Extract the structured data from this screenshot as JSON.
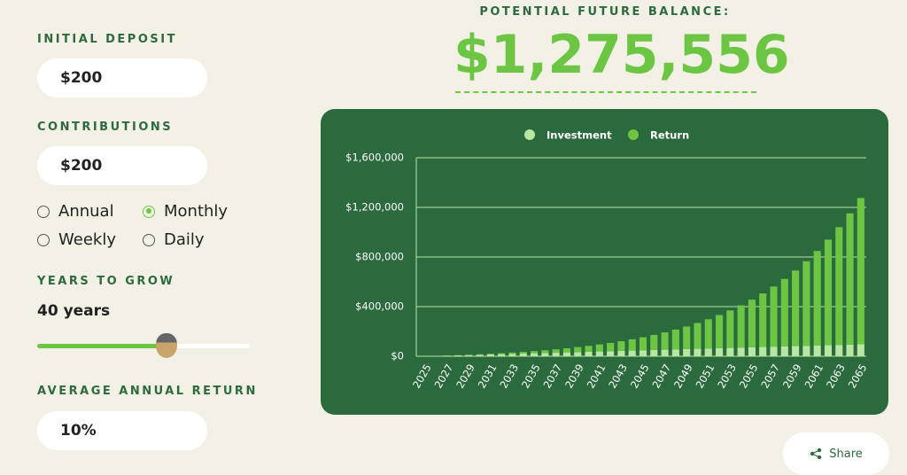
{
  "form": {
    "initial_deposit": {
      "label": "INITIAL DEPOSIT",
      "value": "$200"
    },
    "contributions": {
      "label": "CONTRIBUTIONS",
      "value": "$200"
    },
    "frequency": {
      "options": [
        "Annual",
        "Monthly",
        "Weekly",
        "Daily"
      ],
      "selected": "Monthly"
    },
    "years": {
      "label": "YEARS TO GROW",
      "value": "40 years"
    },
    "average_return": {
      "label": "AVERAGE ANNUAL RETURN",
      "value": "10%"
    }
  },
  "result": {
    "label": "POTENTIAL FUTURE BALANCE:",
    "value": "$1,275,556"
  },
  "share": "Share",
  "chart_data": {
    "type": "bar",
    "stacked": true,
    "categories": [
      "2025",
      null,
      "2027",
      null,
      "2029",
      null,
      "2031",
      null,
      "2033",
      null,
      "2035",
      null,
      "2037",
      null,
      "2039",
      null,
      "2041",
      null,
      "2043",
      null,
      "2045",
      null,
      "2047",
      null,
      "2049",
      null,
      "2051",
      null,
      "2053",
      null,
      "2055",
      null,
      "2057",
      null,
      "2059",
      null,
      "2061",
      null,
      "2063",
      null,
      "2065"
    ],
    "series": [
      {
        "name": "Investment",
        "color": "#b8e6a3",
        "values": [
          200,
          2600,
          5000,
          7400,
          9800,
          12200,
          14600,
          17000,
          19400,
          21800,
          24200,
          26600,
          29000,
          31400,
          33800,
          36200,
          38600,
          41000,
          43400,
          45800,
          48200,
          50600,
          53000,
          55400,
          57800,
          60200,
          62600,
          65000,
          67400,
          69800,
          72200,
          74600,
          77000,
          79400,
          81800,
          84200,
          86600,
          89000,
          91400,
          93800,
          96200
        ]
      },
      {
        "name": "Return",
        "color": "#6cc644",
        "values": [
          0,
          134,
          533,
          1226,
          2242,
          3616,
          5386,
          7592,
          10280,
          13501,
          17310,
          21770,
          26948,
          32919,
          39767,
          47584,
          56470,
          66538,
          77911,
          90727,
          105135,
          121303,
          139417,
          159678,
          182312,
          207567,
          235718,
          267067,
          301949,
          340737,
          383838,
          431702,
          484829,
          543771,
          609136,
          681596,
          761895,
          850852,
          949376,
          1058467,
          1179356
        ]
      }
    ],
    "ylim": [
      0,
      1600000
    ],
    "yticks": [
      {
        "value": 0,
        "label": "$0"
      },
      {
        "value": 400000,
        "label": "$400,000"
      },
      {
        "value": 800000,
        "label": "$800,000"
      },
      {
        "value": 1200000,
        "label": "$1,200,000"
      },
      {
        "value": 1600000,
        "label": "$1,600,000"
      }
    ],
    "grid": true,
    "legend": "top"
  }
}
